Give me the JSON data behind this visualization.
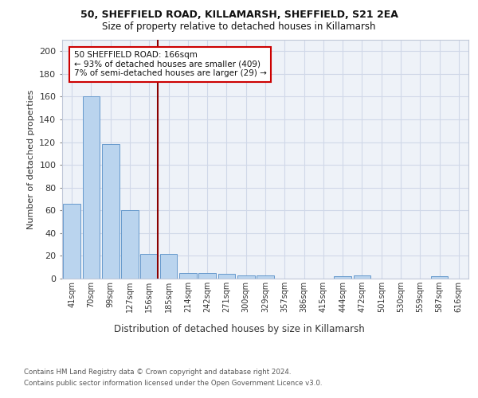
{
  "title1": "50, SHEFFIELD ROAD, KILLAMARSH, SHEFFIELD, S21 2EA",
  "title2": "Size of property relative to detached houses in Killamarsh",
  "xlabel": "Distribution of detached houses by size in Killamarsh",
  "ylabel": "Number of detached properties",
  "categories": [
    "41sqm",
    "70sqm",
    "99sqm",
    "127sqm",
    "156sqm",
    "185sqm",
    "214sqm",
    "242sqm",
    "271sqm",
    "300sqm",
    "329sqm",
    "357sqm",
    "386sqm",
    "415sqm",
    "444sqm",
    "472sqm",
    "501sqm",
    "530sqm",
    "559sqm",
    "587sqm",
    "616sqm"
  ],
  "values": [
    66,
    160,
    118,
    60,
    22,
    22,
    5,
    5,
    4,
    3,
    3,
    0,
    0,
    0,
    2,
    3,
    0,
    0,
    0,
    2,
    0
  ],
  "bar_color": "#bad4ee",
  "bar_edge_color": "#6699cc",
  "ylim": [
    0,
    210
  ],
  "yticks": [
    0,
    20,
    40,
    60,
    80,
    100,
    120,
    140,
    160,
    180,
    200
  ],
  "vline_x_index": 4.45,
  "vline_color": "#8b0000",
  "annotation_line1": "50 SHEFFIELD ROAD: 166sqm",
  "annotation_line2": "← 93% of detached houses are smaller (409)",
  "annotation_line3": "7% of semi-detached houses are larger (29) →",
  "footer1": "Contains HM Land Registry data © Crown copyright and database right 2024.",
  "footer2": "Contains public sector information licensed under the Open Government Licence v3.0.",
  "plot_bg_color": "#eef2f8"
}
